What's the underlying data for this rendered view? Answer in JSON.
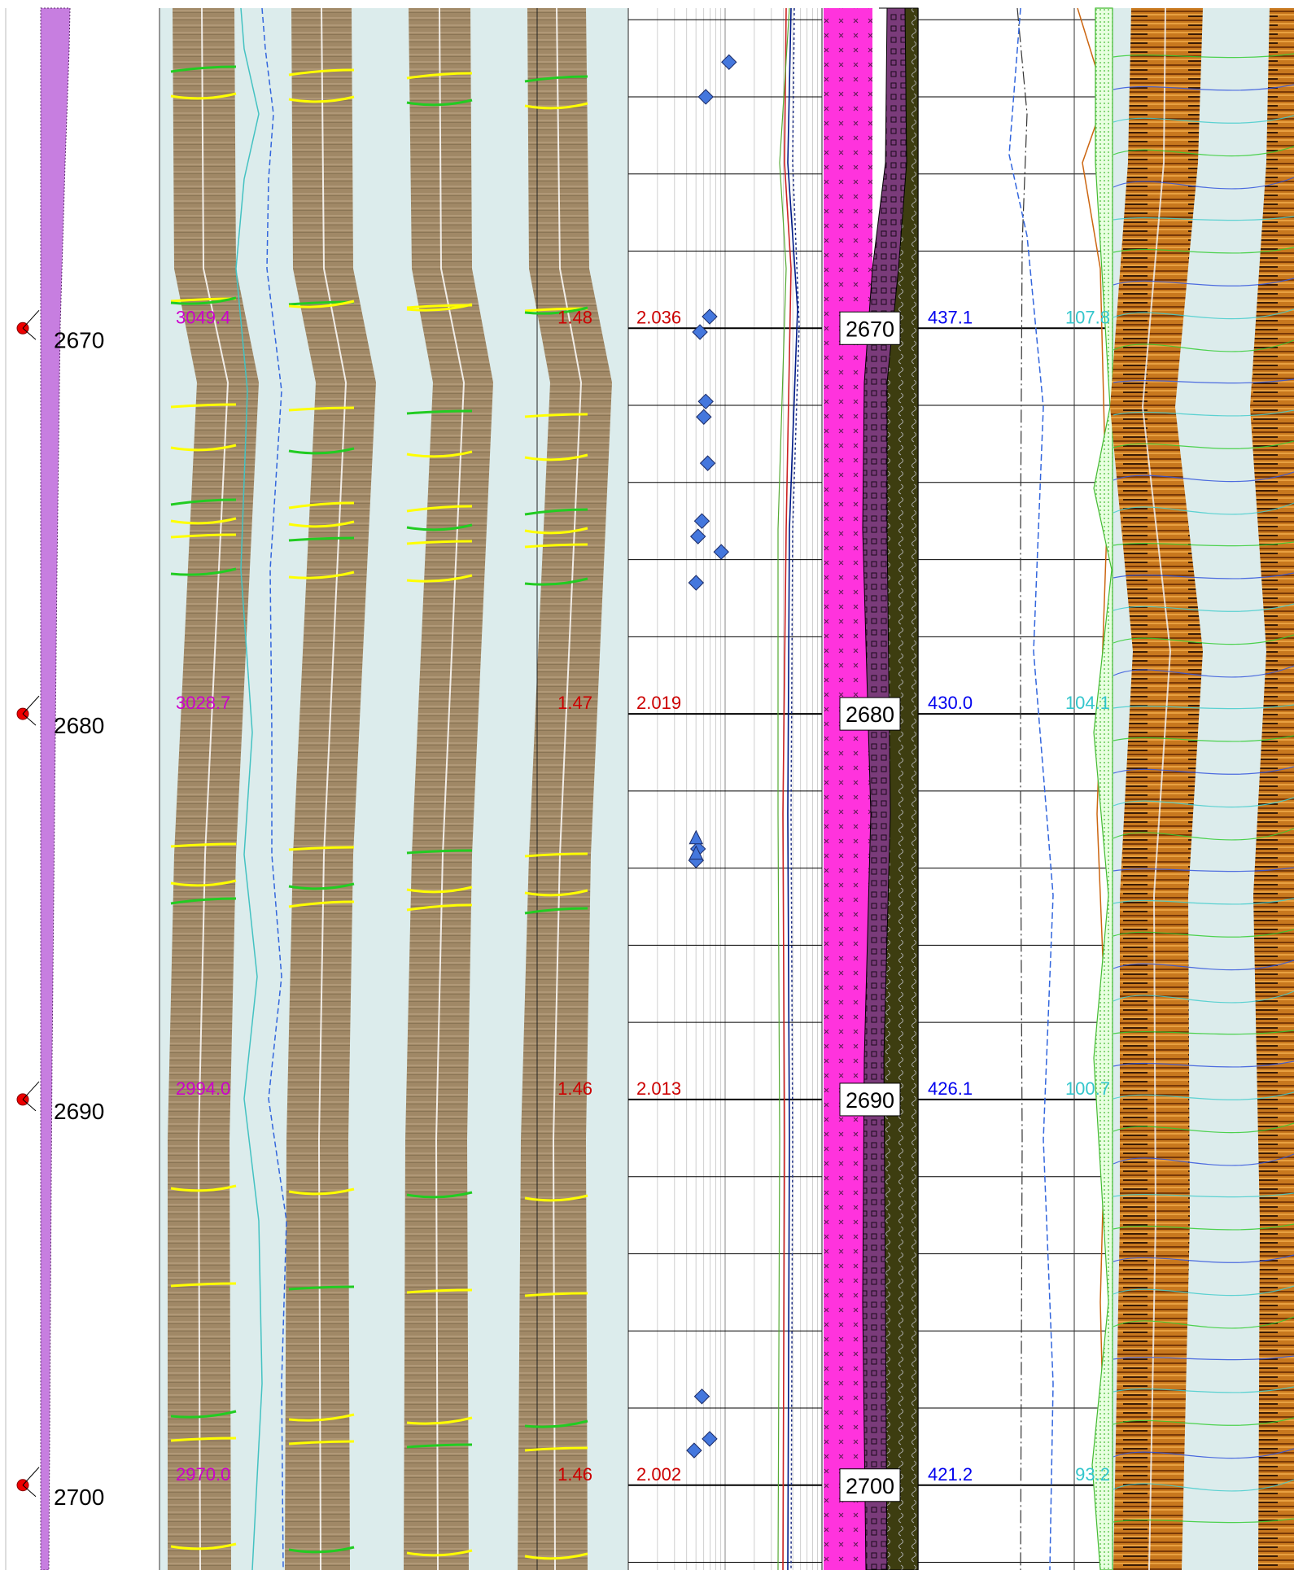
{
  "chart_data": {
    "type": "line",
    "depth_axis": {
      "range": [
        2661.7,
        2702.2
      ],
      "ticks": [
        2670,
        2680,
        2690,
        2700
      ],
      "tick_labels": [
        "2670",
        "2680",
        "2690",
        "2700"
      ]
    },
    "readouts": {
      "track2_left": {
        "color": "#cc00cc",
        "values": [
          "3049.4",
          "3028.7",
          "2994.0",
          "2970.0"
        ]
      },
      "track2_right": {
        "color": "#cc0000",
        "values": [
          "1.48",
          "1.47",
          "1.46",
          "1.46"
        ]
      },
      "track3_left": {
        "color": "#cc0000",
        "values": [
          "2.036",
          "2.019",
          "2.013",
          "2.002"
        ]
      },
      "track5_left": {
        "color": "#0000ee",
        "values": [
          "437.1",
          "430.0",
          "426.1",
          "421.2"
        ]
      },
      "track5_right": {
        "color": "#33c6cc",
        "values": [
          "107.8",
          "104.1",
          "100.7",
          "93.2"
        ]
      }
    },
    "core_points": {
      "diamonds": [
        {
          "depth": 2663.1,
          "value": 0.52
        },
        {
          "depth": 2664.0,
          "value": 0.4
        },
        {
          "depth": 2669.7,
          "value": 0.42
        },
        {
          "depth": 2670.1,
          "value": 0.37
        },
        {
          "depth": 2671.9,
          "value": 0.4
        },
        {
          "depth": 2672.3,
          "value": 0.39
        },
        {
          "depth": 2673.5,
          "value": 0.41
        },
        {
          "depth": 2675.0,
          "value": 0.38
        },
        {
          "depth": 2675.4,
          "value": 0.36
        },
        {
          "depth": 2675.8,
          "value": 0.48
        },
        {
          "depth": 2676.6,
          "value": 0.35
        },
        {
          "depth": 2683.8,
          "value": 0.35
        },
        {
          "depth": 2683.5,
          "value": 0.36
        },
        {
          "depth": 2697.7,
          "value": 0.38
        },
        {
          "depth": 2698.8,
          "value": 0.42
        },
        {
          "depth": 2699.1,
          "value": 0.34
        }
      ],
      "triangles": [
        {
          "depth": 2683.2,
          "value": 0.35
        },
        {
          "depth": 2683.6,
          "value": 0.35
        }
      ]
    },
    "colors": {
      "deviation_fill": "#c77ee0",
      "image_background": "#dcecec",
      "static_image": "#a08866",
      "dynamic_image": "#c07020",
      "lith_magenta": "#ff33dd",
      "lith_purple": "#7a3b7a",
      "lith_olive": "#3d3d10",
      "sinusoid_yellow": "#ffff00",
      "sinusoid_green": "#22cc22",
      "core_marker": "#4477dd"
    }
  }
}
